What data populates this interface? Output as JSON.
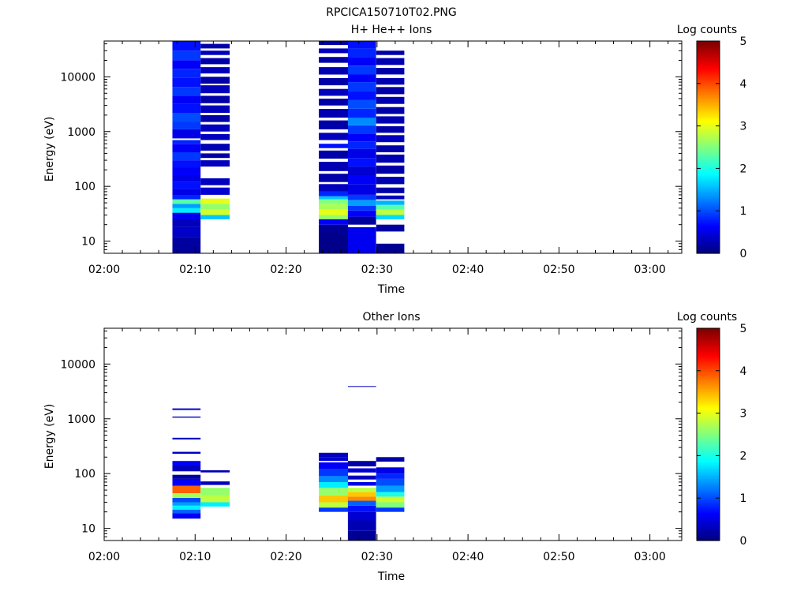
{
  "page_title": "RPCICA150710T02.PNG",
  "colors": {
    "background": "#ffffff",
    "axis": "#000000"
  },
  "chart_data": [
    {
      "type": "heatmap",
      "title": "H+ He++ Ions",
      "xlabel": "Time",
      "ylabel": "Energy (eV)",
      "y_scale": "log",
      "ylim": [
        6,
        45000
      ],
      "x_tick_labels": [
        "02:00",
        "02:10",
        "02:20",
        "02:30",
        "02:40",
        "02:50",
        "03:00"
      ],
      "x_ticks_minutes": [
        0,
        10,
        20,
        30,
        40,
        50,
        60
      ],
      "xlim_minutes": [
        0,
        63.5
      ],
      "y_tick_labels": [
        "10",
        "100",
        "1000",
        "10000"
      ],
      "y_ticks": [
        10,
        100,
        1000,
        10000
      ],
      "colorbar": {
        "label": "Log counts",
        "range": [
          0,
          5
        ],
        "tick_labels": [
          "0",
          "1",
          "2",
          "3",
          "4",
          "5"
        ]
      },
      "columns": [
        {
          "t_start": 7.5,
          "t_end": 10.6,
          "bins": [
            [
              6,
              12,
              0.15
            ],
            [
              12,
              18,
              0.35
            ],
            [
              18,
              25,
              0.3
            ],
            [
              25,
              33,
              0.55
            ],
            [
              33,
              40,
              1.8
            ],
            [
              40,
              48,
              1.4
            ],
            [
              48,
              58,
              2.3
            ],
            [
              58,
              70,
              0.8
            ],
            [
              70,
              90,
              0.5
            ],
            [
              90,
              120,
              0.7
            ],
            [
              120,
              160,
              0.5
            ],
            [
              160,
              220,
              0.6
            ],
            [
              220,
              300,
              0.7
            ],
            [
              300,
              420,
              0.9
            ],
            [
              420,
              600,
              0.6
            ],
            [
              600,
              700,
              0.8
            ],
            [
              750,
              1100,
              0.5
            ],
            [
              1100,
              1500,
              0.9
            ],
            [
              1500,
              2200,
              1.0
            ],
            [
              2200,
              3200,
              0.7
            ],
            [
              3200,
              4500,
              0.6
            ],
            [
              4500,
              6500,
              0.9
            ],
            [
              6500,
              9500,
              0.7
            ],
            [
              9500,
              14000,
              0.8
            ],
            [
              14000,
              20000,
              0.6
            ],
            [
              20000,
              30000,
              0.9
            ],
            [
              30000,
              45000,
              0.7
            ]
          ]
        },
        {
          "t_start": 10.6,
          "t_end": 13.8,
          "bins": [
            [
              25,
              30,
              1.6
            ],
            [
              30,
              38,
              2.9
            ],
            [
              38,
              48,
              2.6
            ],
            [
              48,
              60,
              3.0
            ],
            [
              70,
              95,
              0.4
            ],
            [
              105,
              140,
              0.3
            ],
            [
              230,
              300,
              0.3
            ],
            [
              330,
              400,
              0.2
            ],
            [
              450,
              600,
              0.25
            ],
            [
              700,
              900,
              0.3
            ],
            [
              1000,
              1350,
              0.3
            ],
            [
              1500,
              2000,
              0.2
            ],
            [
              2200,
              3000,
              0.3
            ],
            [
              3300,
              4500,
              0.2
            ],
            [
              5000,
              7000,
              0.3
            ],
            [
              7500,
              10000,
              0.2
            ],
            [
              11500,
              15000,
              0.3
            ],
            [
              17000,
              22000,
              0.2
            ],
            [
              25000,
              30000,
              0.3
            ],
            [
              33000,
              40000,
              0.2
            ]
          ]
        },
        {
          "t_start": 23.6,
          "t_end": 26.8,
          "bins": [
            [
              6,
              14,
              0.05
            ],
            [
              14,
              20,
              0.1
            ],
            [
              20,
              25,
              0.6
            ],
            [
              25,
              30,
              2.6
            ],
            [
              30,
              38,
              3.0
            ],
            [
              38,
              48,
              2.7
            ],
            [
              48,
              58,
              2.5
            ],
            [
              58,
              66,
              1.6
            ],
            [
              66,
              80,
              0.8
            ],
            [
              80,
              110,
              0.3
            ],
            [
              120,
              170,
              0.2
            ],
            [
              190,
              280,
              0.25
            ],
            [
              320,
              450,
              0.2
            ],
            [
              500,
              600,
              0.7
            ],
            [
              700,
              950,
              0.3
            ],
            [
              1100,
              1600,
              0.2
            ],
            [
              1800,
              2600,
              0.25
            ],
            [
              3000,
              4000,
              0.2
            ],
            [
              4500,
              6000,
              0.3
            ],
            [
              7000,
              9500,
              0.2
            ],
            [
              11000,
              15000,
              0.25
            ],
            [
              18000,
              23000,
              0.2
            ],
            [
              27000,
              33000,
              0.3
            ],
            [
              38000,
              45000,
              0.2
            ]
          ]
        },
        {
          "t_start": 26.8,
          "t_end": 29.9,
          "bins": [
            [
              6,
              18,
              0.55
            ],
            [
              20,
              28,
              0.15
            ],
            [
              28,
              36,
              0.6
            ],
            [
              36,
              44,
              0.9
            ],
            [
              44,
              56,
              1.4
            ],
            [
              56,
              70,
              0.9
            ],
            [
              70,
              110,
              0.5
            ],
            [
              110,
              160,
              0.6
            ],
            [
              160,
              230,
              0.4
            ],
            [
              230,
              330,
              0.7
            ],
            [
              330,
              480,
              0.5
            ],
            [
              480,
              650,
              0.8
            ],
            [
              650,
              900,
              0.6
            ],
            [
              900,
              1300,
              0.9
            ],
            [
              1300,
              1800,
              1.3
            ],
            [
              1800,
              2600,
              0.8
            ],
            [
              2600,
              3800,
              1.0
            ],
            [
              3800,
              5500,
              0.7
            ],
            [
              5500,
              8000,
              0.9
            ],
            [
              8000,
              11000,
              0.6
            ],
            [
              11000,
              16000,
              0.9
            ],
            [
              16000,
              23000,
              0.6
            ],
            [
              23000,
              33000,
              0.8
            ],
            [
              33000,
              45000,
              0.7
            ]
          ]
        },
        {
          "t_start": 29.9,
          "t_end": 33.0,
          "bins": [
            [
              6,
              9,
              0.1
            ],
            [
              15,
              20,
              0.15
            ],
            [
              25,
              30,
              1.7
            ],
            [
              30,
              38,
              2.8
            ],
            [
              38,
              46,
              2.3
            ],
            [
              46,
              55,
              1.5
            ],
            [
              58,
              68,
              0.3
            ],
            [
              75,
              95,
              0.2
            ],
            [
              110,
              150,
              0.25
            ],
            [
              170,
              240,
              0.2
            ],
            [
              270,
              380,
              0.25
            ],
            [
              420,
              560,
              0.2
            ],
            [
              640,
              860,
              0.3
            ],
            [
              950,
              1250,
              0.2
            ],
            [
              1400,
              1900,
              0.25
            ],
            [
              2100,
              2800,
              0.2
            ],
            [
              3200,
              4300,
              0.25
            ],
            [
              4800,
              6500,
              0.2
            ],
            [
              7200,
              9500,
              0.25
            ],
            [
              11000,
              14500,
              0.2
            ],
            [
              16500,
              22000,
              0.25
            ],
            [
              25000,
              30000,
              0.2
            ]
          ]
        }
      ]
    },
    {
      "type": "heatmap",
      "title": "Other Ions",
      "xlabel": "Time",
      "ylabel": "Energy (eV)",
      "y_scale": "log",
      "ylim": [
        6,
        45000
      ],
      "x_tick_labels": [
        "02:00",
        "02:10",
        "02:20",
        "02:30",
        "02:40",
        "02:50",
        "03:00"
      ],
      "x_ticks_minutes": [
        0,
        10,
        20,
        30,
        40,
        50,
        60
      ],
      "xlim_minutes": [
        0,
        63.5
      ],
      "y_tick_labels": [
        "10",
        "100",
        "1000",
        "10000"
      ],
      "y_ticks": [
        10,
        100,
        1000,
        10000
      ],
      "colorbar": {
        "label": "Log counts",
        "range": [
          0,
          5
        ],
        "tick_labels": [
          "0",
          "1",
          "2",
          "3",
          "4",
          "5"
        ]
      },
      "columns": [
        {
          "t_start": 7.5,
          "t_end": 10.6,
          "bins": [
            [
              15,
              19,
              0.6
            ],
            [
              19,
              22,
              1.1
            ],
            [
              22,
              26,
              1.8
            ],
            [
              26,
              30,
              1.4
            ],
            [
              30,
              36,
              1.0
            ],
            [
              36,
              44,
              2.7
            ],
            [
              44,
              60,
              3.9
            ],
            [
              60,
              80,
              0.6
            ],
            [
              80,
              95,
              0.2
            ],
            [
              110,
              140,
              0.3
            ],
            [
              140,
              170,
              0.6
            ],
            [
              230,
              250,
              0.3
            ],
            [
              420,
              450,
              0.3
            ],
            [
              1050,
              1100,
              0.3
            ],
            [
              1450,
              1550,
              0.4
            ]
          ]
        },
        {
          "t_start": 10.6,
          "t_end": 13.8,
          "bins": [
            [
              25,
              30,
              1.8
            ],
            [
              30,
              40,
              2.8
            ],
            [
              40,
              55,
              2.6
            ],
            [
              62,
              72,
              0.3
            ],
            [
              105,
              115,
              0.25
            ]
          ]
        },
        {
          "t_start": 23.6,
          "t_end": 26.8,
          "bins": [
            [
              20,
              24,
              0.9
            ],
            [
              24,
              30,
              2.8
            ],
            [
              30,
              40,
              3.4
            ],
            [
              40,
              55,
              2.6
            ],
            [
              55,
              70,
              1.8
            ],
            [
              70,
              90,
              1.3
            ],
            [
              90,
              120,
              0.9
            ],
            [
              120,
              160,
              0.6
            ],
            [
              170,
              200,
              0.4
            ],
            [
              200,
              240,
              0.3
            ]
          ]
        },
        {
          "t_start": 26.8,
          "t_end": 29.9,
          "bins": [
            [
              6,
              9,
              0.1
            ],
            [
              9,
              14,
              0.25
            ],
            [
              14,
              20,
              0.4
            ],
            [
              20,
              26,
              0.7
            ],
            [
              26,
              32,
              1.1
            ],
            [
              32,
              38,
              3.7
            ],
            [
              38,
              46,
              3.4
            ],
            [
              46,
              55,
              2.8
            ],
            [
              60,
              70,
              0.5
            ],
            [
              78,
              92,
              0.3
            ],
            [
              105,
              125,
              0.4
            ],
            [
              135,
              170,
              0.2
            ],
            [
              3850,
              3950,
              0.3
            ]
          ]
        },
        {
          "t_start": 29.9,
          "t_end": 33.0,
          "bins": [
            [
              20,
              24,
              0.9
            ],
            [
              24,
              30,
              2.5
            ],
            [
              30,
              38,
              2.9
            ],
            [
              38,
              46,
              2.0
            ],
            [
              46,
              60,
              1.4
            ],
            [
              60,
              80,
              1.0
            ],
            [
              80,
              100,
              0.8
            ],
            [
              100,
              130,
              0.5
            ],
            [
              165,
              200,
              0.2
            ]
          ]
        }
      ]
    }
  ]
}
